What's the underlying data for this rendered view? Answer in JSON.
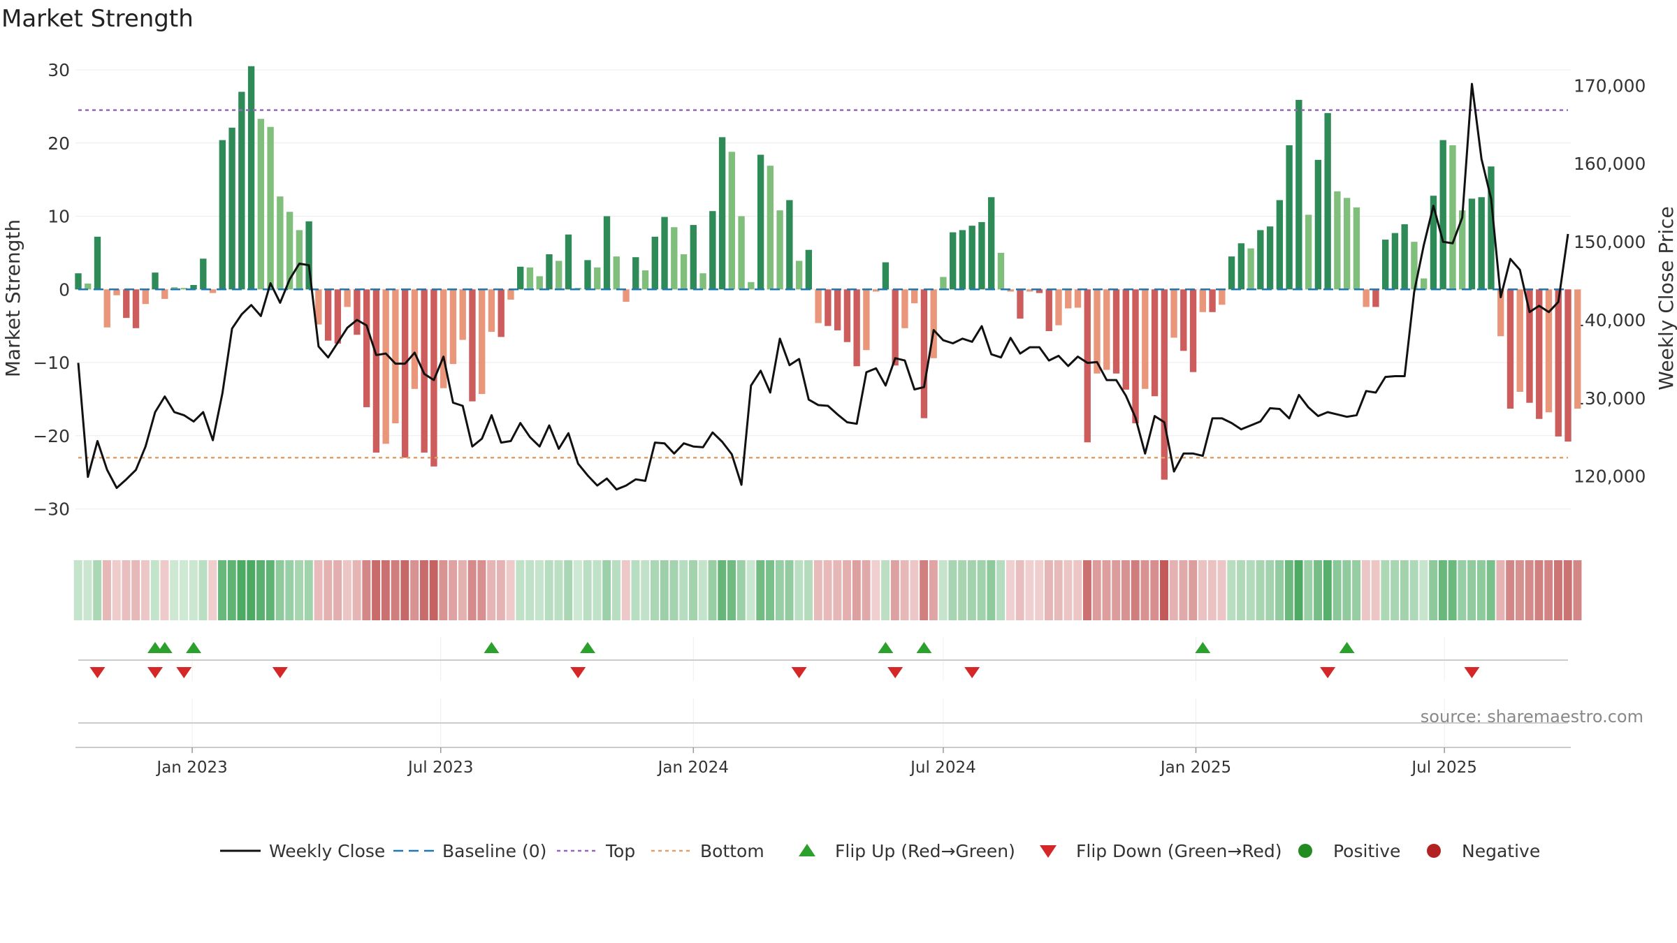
{
  "chart_data": {
    "type": "bar",
    "title": "Market Strength",
    "ylabel": "Market Strength",
    "y2label": "Weekly Close Price",
    "ylim": [
      -33,
      30
    ],
    "y2lim": [
      113000,
      172000
    ],
    "yticks": [
      30,
      20,
      10,
      0,
      -10,
      -20,
      -30
    ],
    "y2ticks": [
      170000,
      160000,
      150000,
      140000,
      130000,
      120000
    ],
    "y2tick_labels": [
      "170,000",
      "160,000",
      "150,000",
      "140,000",
      "130,000",
      "120,000"
    ],
    "x_start": "2022-10-10",
    "x_end": "2025-09-29",
    "xticks": [
      {
        "date": "2023-01-01",
        "label": "Jan 2023"
      },
      {
        "date": "2023-07-01",
        "label": "Jul 2023"
      },
      {
        "date": "2024-01-01",
        "label": "Jan 2024"
      },
      {
        "date": "2024-07-01",
        "label": "Jul 2024"
      },
      {
        "date": "2025-01-01",
        "label": "Jan 2025"
      },
      {
        "date": "2025-07-01",
        "label": "Jul 2025"
      }
    ],
    "top_level": 24.5,
    "bottom_level": -23,
    "baseline": 0,
    "strength": [
      2.2,
      0.8,
      7.2,
      -5.2,
      -0.8,
      -3.9,
      -5.3,
      -2.0,
      2.3,
      -1.3,
      0.3,
      0.2,
      0.6,
      4.2,
      -0.5,
      20.4,
      22.1,
      27.0,
      30.5,
      23.3,
      22.2,
      12.7,
      10.6,
      8.1,
      9.3,
      -4.8,
      -7.0,
      -7.4,
      -2.4,
      -6.2,
      -16.1,
      -22.3,
      -21.1,
      -18.3,
      -23.0,
      -13.6,
      -22.3,
      -24.2,
      -13.5,
      -10.2,
      -6.9,
      -15.3,
      -14.3,
      -5.8,
      -6.5,
      -1.4,
      3.1,
      3.0,
      1.8,
      4.8,
      3.9,
      7.5,
      0.2,
      4.0,
      3.0,
      10.0,
      4.5,
      -1.7,
      4.4,
      2.6,
      7.2,
      9.9,
      8.5,
      4.8,
      8.8,
      2.2,
      10.7,
      20.8,
      18.8,
      10.0,
      1.0,
      18.4,
      16.9,
      10.8,
      12.2,
      3.9,
      5.4,
      -4.6,
      -5.0,
      -5.6,
      -7.2,
      -10.5,
      -8.3,
      -0.3,
      3.7,
      -10.4,
      -5.3,
      -1.9,
      -17.6,
      -9.4,
      1.7,
      7.8,
      8.1,
      8.7,
      9.2,
      12.6,
      5.0,
      -0.3,
      -4.0,
      -0.3,
      -0.5,
      -5.7,
      -4.9,
      -2.6,
      -2.5,
      -20.9,
      -11.5,
      -11.0,
      -11.5,
      -13.7,
      -18.3,
      -13.6,
      -14.6,
      -26.0,
      -6.6,
      -8.4,
      -11.3,
      -3.1,
      -3.1,
      -2.1,
      4.5,
      6.3,
      5.6,
      8.1,
      8.6,
      12.2,
      19.7,
      25.9,
      10.2,
      17.7,
      24.1,
      13.4,
      12.5,
      11.2,
      -2.4,
      -2.4,
      6.8,
      7.7,
      8.9,
      6.5,
      1.5,
      12.8,
      20.4,
      19.7,
      10.8,
      12.4,
      12.6,
      16.8,
      -6.4,
      -16.3,
      -14.0,
      -15.5,
      -17.7,
      -16.8,
      -20.1,
      -20.8,
      -16.3
    ],
    "weekly_close": [
      134500,
      119900,
      124500,
      120800,
      118500,
      119600,
      120800,
      123800,
      128200,
      130200,
      128200,
      127800,
      127000,
      128200,
      124600,
      130600,
      138900,
      140700,
      141900,
      140500,
      144700,
      142200,
      145200,
      147200,
      147000,
      136600,
      135200,
      137100,
      139000,
      140000,
      139300,
      135500,
      135700,
      134400,
      134400,
      135800,
      133100,
      132300,
      135300,
      129400,
      129000,
      123800,
      124800,
      127800,
      124300,
      124500,
      126800,
      125000,
      123800,
      126500,
      123500,
      125500,
      121600,
      120100,
      118800,
      119700,
      118300,
      118800,
      119600,
      119400,
      124300,
      124200,
      122900,
      124200,
      123800,
      123700,
      125600,
      124400,
      122800,
      118900,
      131600,
      133500,
      130700,
      137600,
      134200,
      135000,
      129800,
      129100,
      129000,
      127900,
      126900,
      126700,
      133300,
      133800,
      131600,
      135100,
      134800,
      131100,
      131400,
      138700,
      137400,
      137000,
      137600,
      137200,
      139200,
      135600,
      135200,
      137700,
      135700,
      136500,
      136500,
      134800,
      135400,
      134100,
      135300,
      134500,
      134600,
      132300,
      132300,
      130300,
      127500,
      122900,
      127700,
      126900,
      120600,
      122900,
      122900,
      122600,
      127400,
      127400,
      126800,
      126000,
      126500,
      127000,
      128700,
      128600,
      127400,
      130400,
      128800,
      127700,
      128200,
      127900,
      127600,
      127800,
      130900,
      130700,
      132700,
      132800,
      132800,
      143600,
      149600,
      154600,
      150000,
      149800,
      153100,
      170200,
      160600,
      155500,
      142900,
      147800,
      146400,
      141000,
      141800,
      141000,
      142300,
      151000
    ],
    "flips_up": [
      "2022-12-05",
      "2022-12-12",
      "2023-01-02",
      "2023-08-07",
      "2023-10-16",
      "2024-05-20",
      "2024-06-17",
      "2025-01-06",
      "2025-04-21"
    ],
    "flips_down": [
      "2022-10-24",
      "2022-12-05",
      "2022-12-26",
      "2023-03-06",
      "2023-10-09",
      "2024-03-18",
      "2024-05-27",
      "2024-07-22",
      "2025-04-07",
      "2025-07-21"
    ],
    "legend": [
      {
        "key": "close",
        "label": "Weekly Close",
        "color": "#000000"
      },
      {
        "key": "baseline",
        "label": "Baseline (0)",
        "color": "#1f77b4"
      },
      {
        "key": "top",
        "label": "Top",
        "color": "#9467bd"
      },
      {
        "key": "bottom",
        "label": "Bottom",
        "color": "#ff7f0e"
      },
      {
        "key": "flipup",
        "label": "Flip Up (Red→Green)",
        "color": "#2ca02c"
      },
      {
        "key": "flipdown",
        "label": "Flip Down (Green→Red)",
        "color": "#d62728"
      },
      {
        "key": "positive",
        "label": "Positive",
        "color": "#2ca02c"
      },
      {
        "key": "negative",
        "label": "Negative",
        "color": "#b22222"
      }
    ],
    "source": "source: sharemaestro.com"
  }
}
